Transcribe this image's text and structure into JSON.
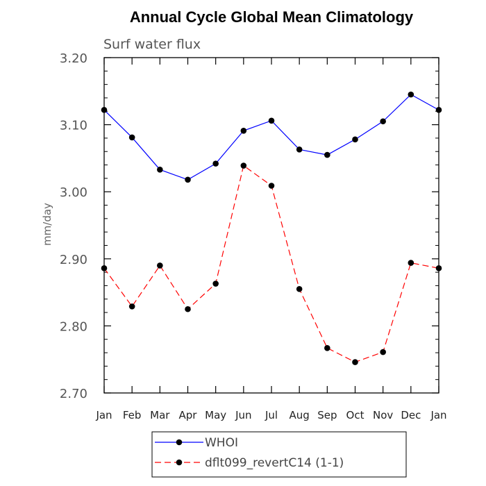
{
  "chart_data": {
    "type": "line",
    "title": "Annual Cycle Global Mean Climatology",
    "subtitle": "Surf water flux",
    "xlabel": "",
    "ylabel": "mm/day",
    "categories": [
      "Jan",
      "Feb",
      "Mar",
      "Apr",
      "May",
      "Jun",
      "Jul",
      "Aug",
      "Sep",
      "Oct",
      "Nov",
      "Dec",
      "Jan"
    ],
    "ylim": [
      2.7,
      3.2
    ],
    "yticks": [
      "2.70",
      "2.80",
      "2.90",
      "3.00",
      "3.10",
      "3.20"
    ],
    "grid": false,
    "legend_position": "bottom",
    "series": [
      {
        "name": "WHOI",
        "color": "#0000ff",
        "dash": "solid",
        "values": [
          3.122,
          3.081,
          3.033,
          3.018,
          3.042,
          3.091,
          3.106,
          3.063,
          3.055,
          3.078,
          3.105,
          3.145,
          3.122
        ]
      },
      {
        "name": "dflt099_revertC14 (1-1)",
        "color": "#ff0000",
        "dash": "dashed",
        "values": [
          2.886,
          2.829,
          2.89,
          2.825,
          2.863,
          3.039,
          3.009,
          2.855,
          2.767,
          2.746,
          2.761,
          2.894,
          2.886
        ]
      }
    ]
  }
}
